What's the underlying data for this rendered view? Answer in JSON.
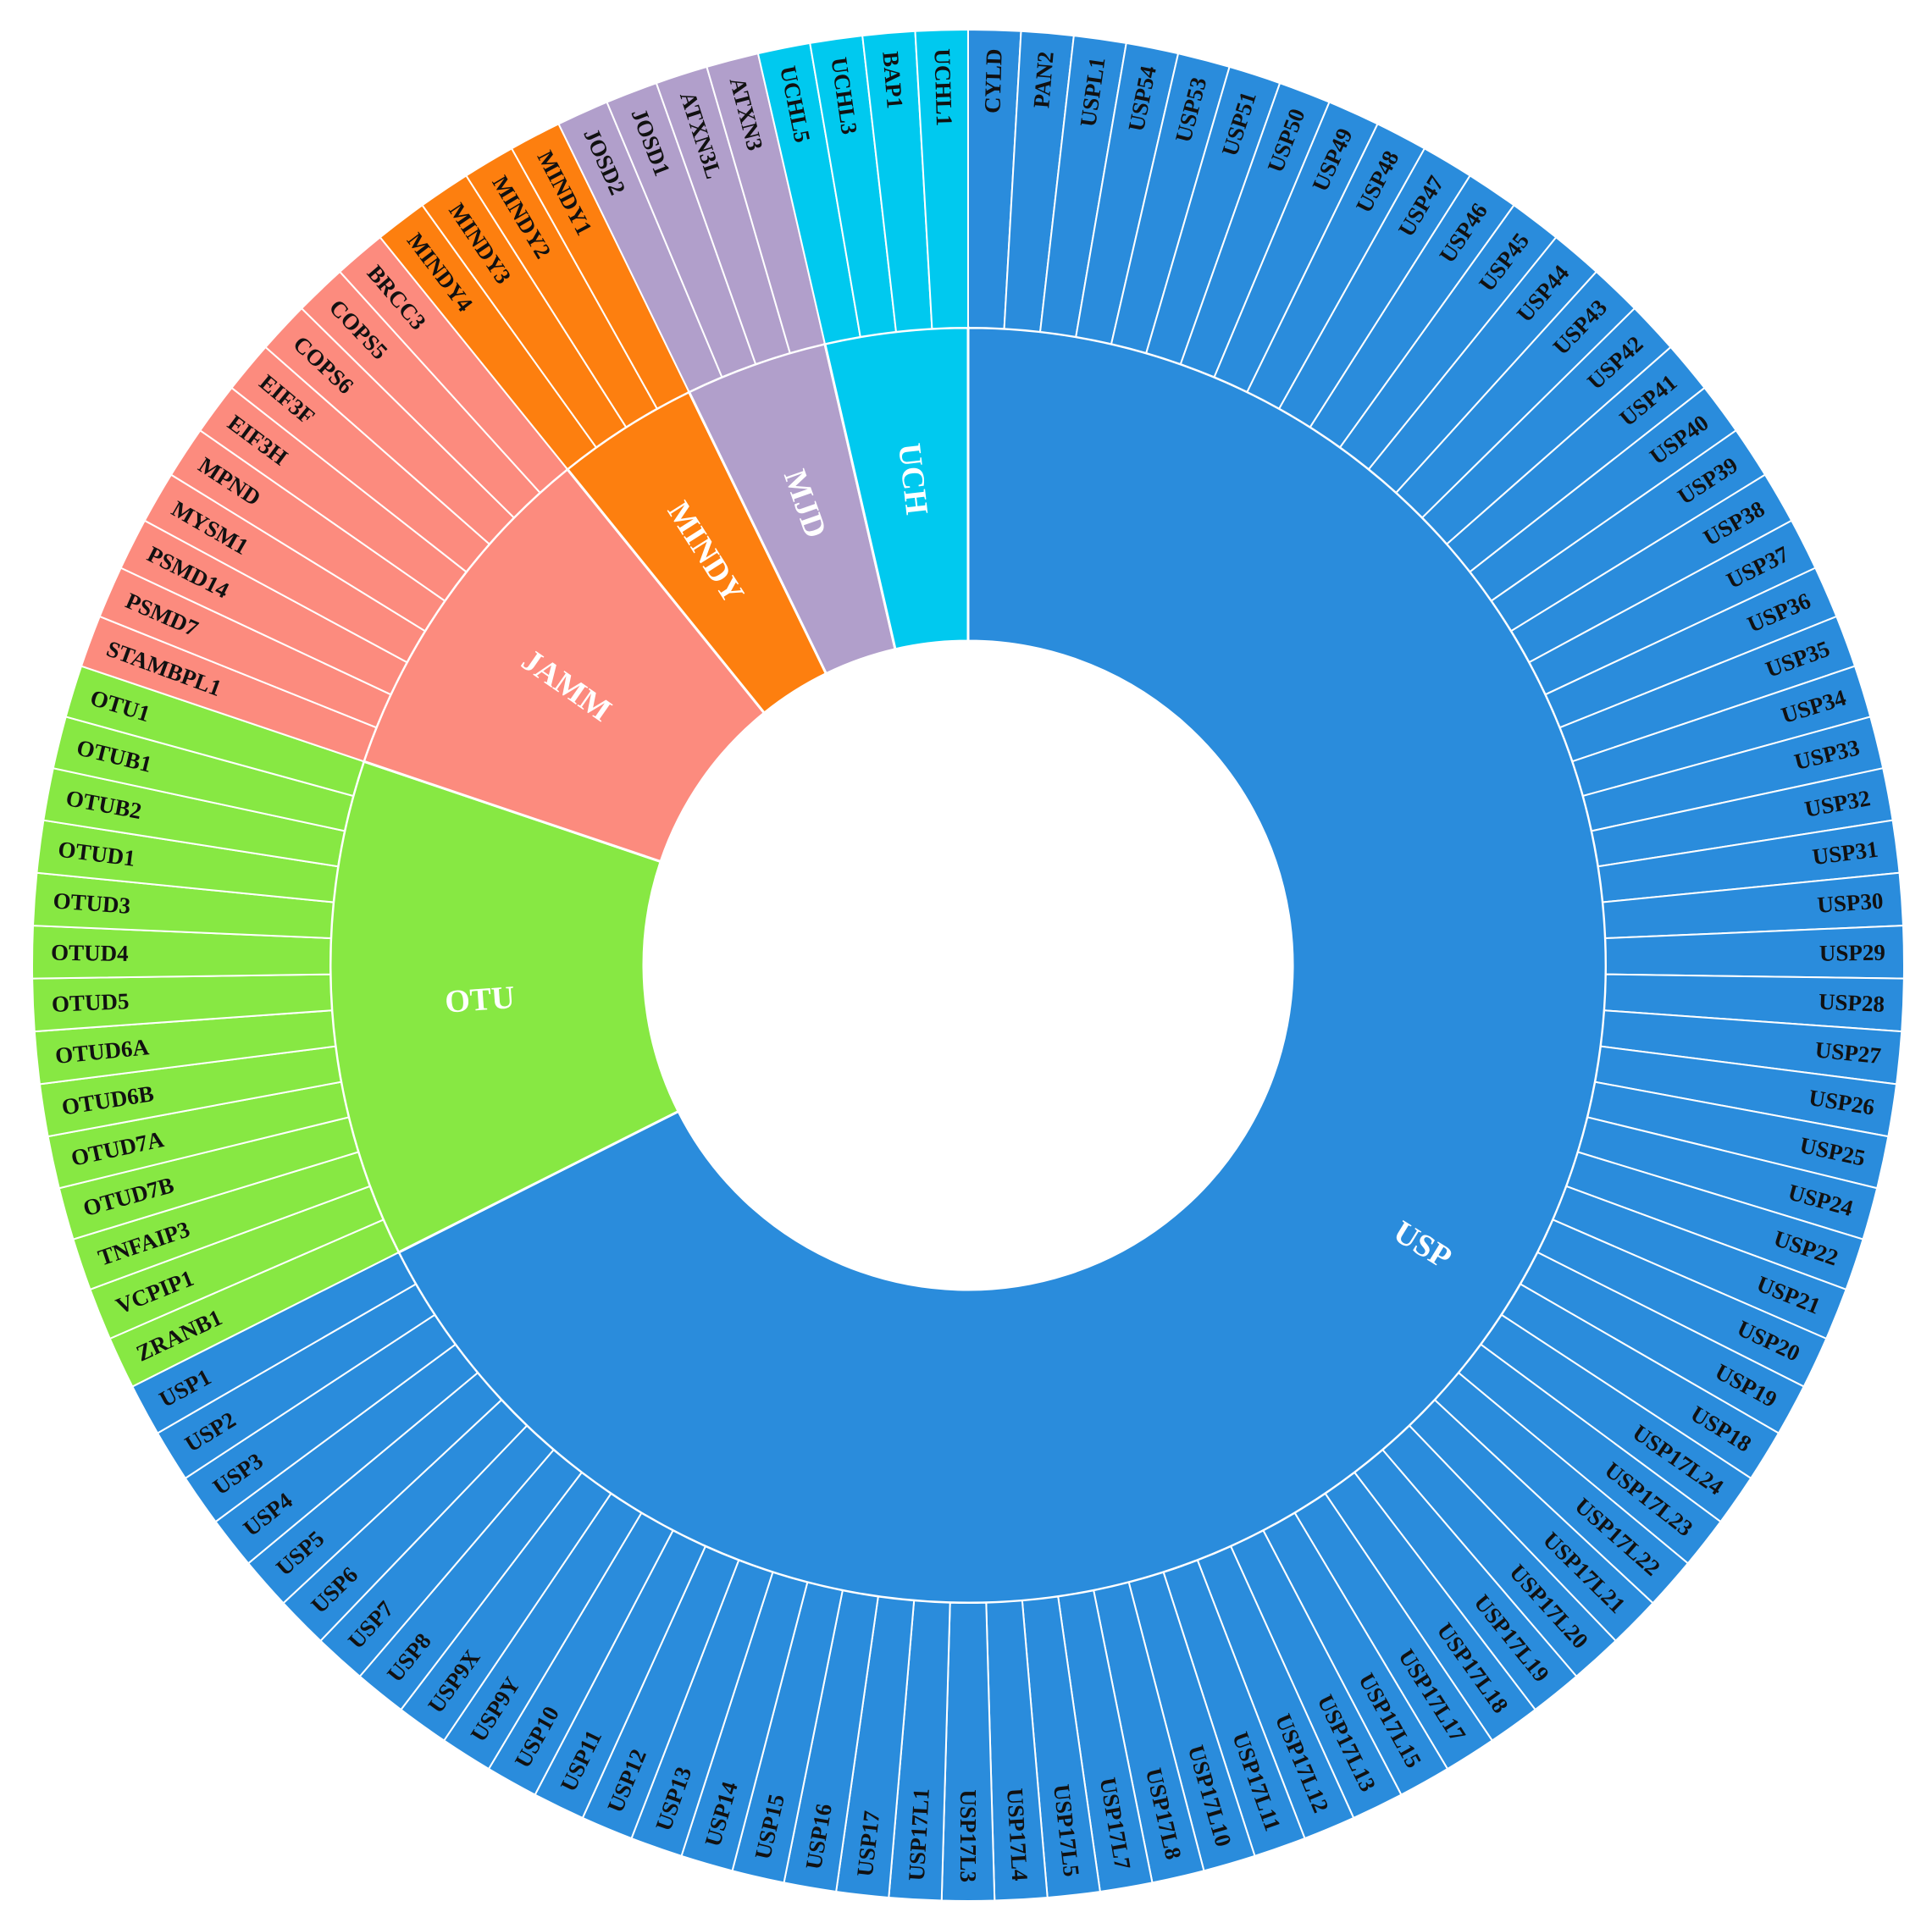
{
  "chart_data": {
    "type": "sunburst",
    "title": "",
    "families": [
      {
        "name": "USP",
        "color": "#2a8cdc",
        "members": [
          "CYLD",
          "PAN2",
          "USPL1",
          "USP54",
          "USP53",
          "USP51",
          "USP50",
          "USP49",
          "USP48",
          "USP47",
          "USP46",
          "USP45",
          "USP44",
          "USP43",
          "USP42",
          "USP41",
          "USP40",
          "USP39",
          "USP38",
          "USP37",
          "USP36",
          "USP35",
          "USP34",
          "USP33",
          "USP32",
          "USP31",
          "USP30",
          "USP29",
          "USP28",
          "USP27",
          "USP26",
          "USP25",
          "USP24",
          "USP22",
          "USP21",
          "USP20",
          "USP19",
          "USP18",
          "USP17L24",
          "USP17L23",
          "USP17L22",
          "USP17L21",
          "USP17L20",
          "USP17L19",
          "USP17L18",
          "USP17L17",
          "USP17L15",
          "USP17L13",
          "USP17L12",
          "USP17L11",
          "USP17L10",
          "USP17L8",
          "USP17L7",
          "USP17L5",
          "USP17L4",
          "USP17L3",
          "USP17L1",
          "USP17",
          "USP16",
          "USP15",
          "USP14",
          "USP13",
          "USP12",
          "USP11",
          "USP10",
          "USP9Y",
          "USP9X",
          "USP8",
          "USP7",
          "USP6",
          "USP5",
          "USP4",
          "USP3",
          "USP2",
          "USP1"
        ]
      },
      {
        "name": "OTU",
        "color": "#87e843",
        "members": [
          "ZRANB1",
          "VCPIP1",
          "TNFAIP3",
          "OTUD7B",
          "OTUD7A",
          "OTUD6B",
          "OTUD6A",
          "OTUD5",
          "OTUD4",
          "OTUD3",
          "OTUD1",
          "OTUB2",
          "OTUB1",
          "OTU1"
        ]
      },
      {
        "name": "JAMM",
        "color": "#fc8b7e",
        "members": [
          "STAMBPL1",
          "PSMD7",
          "PSMD14",
          "MYSM1",
          "MPND",
          "EIF3H",
          "EIF3F",
          "COPS6",
          "COPS5",
          "BRCC3"
        ]
      },
      {
        "name": "MINDY",
        "color": "#fd7f0f",
        "members": [
          "MINDY4",
          "MINDY3",
          "MINDY2",
          "MINDY1"
        ]
      },
      {
        "name": "MJD",
        "color": "#b19fcb",
        "members": [
          "JOSD2",
          "JOSD1",
          "ATXN3L",
          "ATXN3"
        ]
      },
      {
        "name": "UCH",
        "color": "#00c9ef",
        "members": [
          "UCHL5",
          "UCHL3",
          "BAP1",
          "UCHL1"
        ]
      }
    ]
  }
}
